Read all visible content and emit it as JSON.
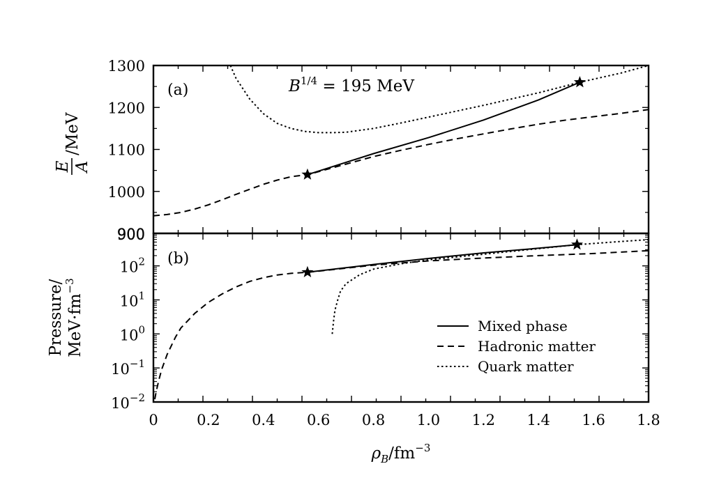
{
  "chart_data": [
    {
      "panel": "(a)",
      "type": "line",
      "annotation": {
        "base": "B",
        "sup": "1/4",
        "rest": " = 195 MeV"
      },
      "ylabel": {
        "num": "E",
        "den": "A",
        "unit": "/MeV"
      },
      "ylim": [
        900,
        1300
      ],
      "yticks": [
        900,
        1000,
        1100,
        1200,
        1300
      ],
      "xlim": [
        0,
        1.8
      ],
      "series": [
        {
          "key": "mixed",
          "style": "solid",
          "x": [
            0.56,
            0.8,
            1.0,
            1.2,
            1.4,
            1.55
          ],
          "y": [
            1040,
            1090,
            1128,
            1170,
            1218,
            1260
          ]
        },
        {
          "key": "hadronic",
          "style": "dashed",
          "x": [
            0.0,
            0.05,
            0.1,
            0.15,
            0.2,
            0.25,
            0.3,
            0.35,
            0.4,
            0.45,
            0.5,
            0.56,
            0.6,
            0.7,
            0.8,
            0.9,
            1.0,
            1.1,
            1.2,
            1.3,
            1.4,
            1.5,
            1.6,
            1.7,
            1.8
          ],
          "y": [
            942,
            945,
            950,
            958,
            968,
            980,
            993,
            1005,
            1017,
            1027,
            1035,
            1040,
            1047,
            1065,
            1083,
            1098,
            1112,
            1125,
            1137,
            1149,
            1160,
            1170,
            1178,
            1186,
            1195
          ]
        },
        {
          "key": "quark",
          "style": "dotted",
          "x": [
            0.28,
            0.3,
            0.35,
            0.4,
            0.45,
            0.5,
            0.55,
            0.6,
            0.65,
            0.7,
            0.8,
            0.9,
            1.0,
            1.2,
            1.4,
            1.55,
            1.7,
            1.8
          ],
          "y": [
            1300,
            1270,
            1220,
            1185,
            1162,
            1150,
            1143,
            1140,
            1140,
            1141,
            1150,
            1163,
            1177,
            1205,
            1235,
            1260,
            1282,
            1300
          ]
        }
      ],
      "markers": [
        {
          "x": 0.56,
          "y": 1040
        },
        {
          "x": 1.55,
          "y": 1260
        }
      ]
    },
    {
      "panel": "(b)",
      "type": "line",
      "yscale": "log",
      "ylabel": {
        "line1": "Pressure/",
        "line2_base": "MeV·fm",
        "line2_sup": "−3"
      },
      "ylim": [
        0.01,
        900
      ],
      "yticks": [
        {
          "value": 0.01,
          "base": "10",
          "sup": "−2"
        },
        {
          "value": 0.1,
          "base": "10",
          "sup": "−1"
        },
        {
          "value": 1,
          "base": "10",
          "sup": "0"
        },
        {
          "value": 10,
          "base": "10",
          "sup": "1"
        },
        {
          "value": 100,
          "base": "10",
          "sup": "2"
        },
        {
          "value": 900,
          "base": "900",
          "sup": ""
        }
      ],
      "xlim": [
        0,
        1.8
      ],
      "xticks": [
        "0",
        "0.2",
        "0.4",
        "0.6",
        "0.8",
        "1.0",
        "1.2",
        "1.4",
        "1.6",
        "1.8"
      ],
      "xlabel": {
        "base": "ρ",
        "sub": "B",
        "mid": "/fm",
        "sup": "−3"
      },
      "series": [
        {
          "key": "mixed",
          "style": "solid",
          "x": [
            0.56,
            0.8,
            1.0,
            1.2,
            1.4,
            1.54
          ],
          "y": [
            65,
            110,
            165,
            240,
            330,
            420
          ]
        },
        {
          "key": "hadronic",
          "style": "dashed",
          "x": [
            0.005,
            0.01,
            0.02,
            0.03,
            0.05,
            0.08,
            0.1,
            0.15,
            0.2,
            0.25,
            0.3,
            0.35,
            0.4,
            0.45,
            0.5,
            0.56,
            0.6,
            0.8,
            1.0,
            1.2,
            1.4,
            1.6,
            1.8
          ],
          "y": [
            0.012,
            0.02,
            0.045,
            0.09,
            0.25,
            0.8,
            1.5,
            4,
            8.5,
            15,
            24,
            35,
            45,
            54,
            60,
            65,
            70,
            105,
            140,
            170,
            200,
            230,
            280
          ]
        },
        {
          "key": "quark",
          "style": "dotted",
          "x": [
            0.65,
            0.655,
            0.66,
            0.67,
            0.68,
            0.7,
            0.75,
            0.8,
            0.9,
            1.0,
            1.2,
            1.4,
            1.54,
            1.7,
            1.8
          ],
          "y": [
            1.0,
            2.5,
            5,
            10,
            18,
            30,
            55,
            80,
            115,
            150,
            220,
            320,
            420,
            520,
            590
          ]
        }
      ],
      "markers": [
        {
          "x": 0.56,
          "y": 65
        },
        {
          "x": 1.54,
          "y": 420
        }
      ]
    }
  ],
  "legend": {
    "placement": "lower-right of panel (b)",
    "entries": [
      {
        "key": "mixed",
        "label": "Mixed phase",
        "style": "solid"
      },
      {
        "key": "hadronic",
        "label": "Hadronic matter",
        "style": "dashed"
      },
      {
        "key": "quark",
        "label": "Quark matter",
        "style": "dotted"
      }
    ]
  },
  "colors": {
    "ink": "#000000",
    "background": "#ffffff"
  }
}
